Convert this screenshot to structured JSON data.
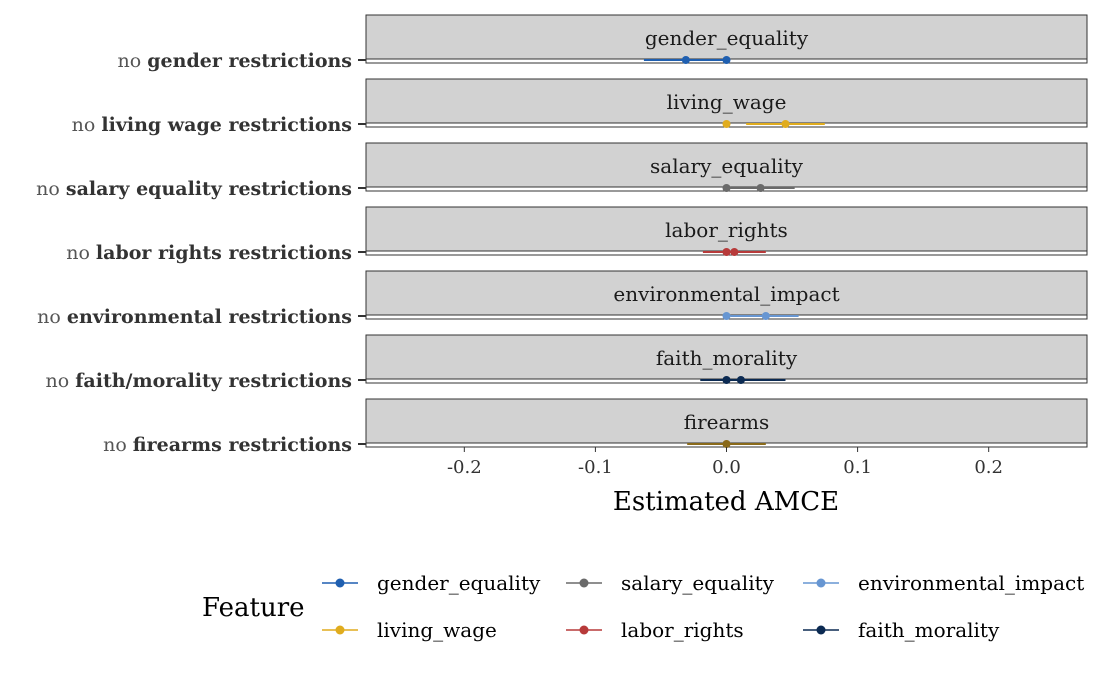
{
  "chart_data": {
    "type": "scatter",
    "xlabel": "Estimated AMCE",
    "ylabel": "",
    "xlim": [
      -0.275,
      0.275
    ],
    "x_ticks": [
      -0.2,
      -0.1,
      0.0,
      0.1,
      0.2
    ],
    "x_tick_labels": [
      "-0.2",
      "-0.1",
      "0.0",
      "0.1",
      "0.2"
    ],
    "grid": false,
    "legend_title": "Feature",
    "legend_placement": "bottom",
    "facets": [
      {
        "strip": "gender_equality",
        "row_label_prefix": "no ",
        "row_label_key": "gender restrictions",
        "color": "#1f5fb0",
        "points": [
          {
            "x": -0.031,
            "lo": -0.063,
            "hi": 0.001
          },
          {
            "x": 0.0,
            "lo": 0.0,
            "hi": 0.0
          }
        ]
      },
      {
        "strip": "living_wage",
        "row_label_prefix": "no ",
        "row_label_key": "living wage restrictions",
        "color": "#e0ac1e",
        "points": [
          {
            "x": 0.0,
            "lo": 0.0,
            "hi": 0.0
          },
          {
            "x": 0.045,
            "lo": 0.015,
            "hi": 0.075
          }
        ]
      },
      {
        "strip": "salary_equality",
        "row_label_prefix": "no ",
        "row_label_key": "salary equality restrictions",
        "color": "#6a6a6a",
        "points": [
          {
            "x": 0.0,
            "lo": 0.0,
            "hi": 0.0
          },
          {
            "x": 0.026,
            "lo": 0.0,
            "hi": 0.052
          }
        ]
      },
      {
        "strip": "labor_rights",
        "row_label_prefix": "no ",
        "row_label_key": "labor rights restrictions",
        "color": "#b73a3a",
        "points": [
          {
            "x": 0.0,
            "lo": 0.0,
            "hi": 0.0
          },
          {
            "x": 0.006,
            "lo": -0.018,
            "hi": 0.03
          }
        ]
      },
      {
        "strip": "environmental_impact",
        "row_label_prefix": "no ",
        "row_label_key": "environmental restrictions",
        "color": "#6796d2",
        "points": [
          {
            "x": 0.0,
            "lo": 0.0,
            "hi": 0.0
          },
          {
            "x": 0.03,
            "lo": 0.003,
            "hi": 0.055
          }
        ]
      },
      {
        "strip": "faith_morality",
        "row_label_prefix": "no ",
        "row_label_key": "faith/morality restrictions",
        "color": "#0b2a52",
        "points": [
          {
            "x": 0.0,
            "lo": 0.0,
            "hi": 0.0
          },
          {
            "x": 0.011,
            "lo": -0.02,
            "hi": 0.045
          }
        ]
      },
      {
        "strip": "firearms",
        "row_label_prefix": "no ",
        "row_label_key": "firearms restrictions",
        "color": "#8a6a1a",
        "points": [
          {
            "x": 0.0,
            "lo": -0.03,
            "hi": 0.03
          }
        ]
      }
    ],
    "legend": [
      {
        "label": "gender_equality",
        "color": "#1f5fb0"
      },
      {
        "label": "salary_equality",
        "color": "#6a6a6a"
      },
      {
        "label": "environmental_impact",
        "color": "#6796d2"
      },
      {
        "label": "living_wage",
        "color": "#e0ac1e"
      },
      {
        "label": "labor_rights",
        "color": "#b73a3a"
      },
      {
        "label": "faith_morality",
        "color": "#0b2a52"
      }
    ]
  }
}
